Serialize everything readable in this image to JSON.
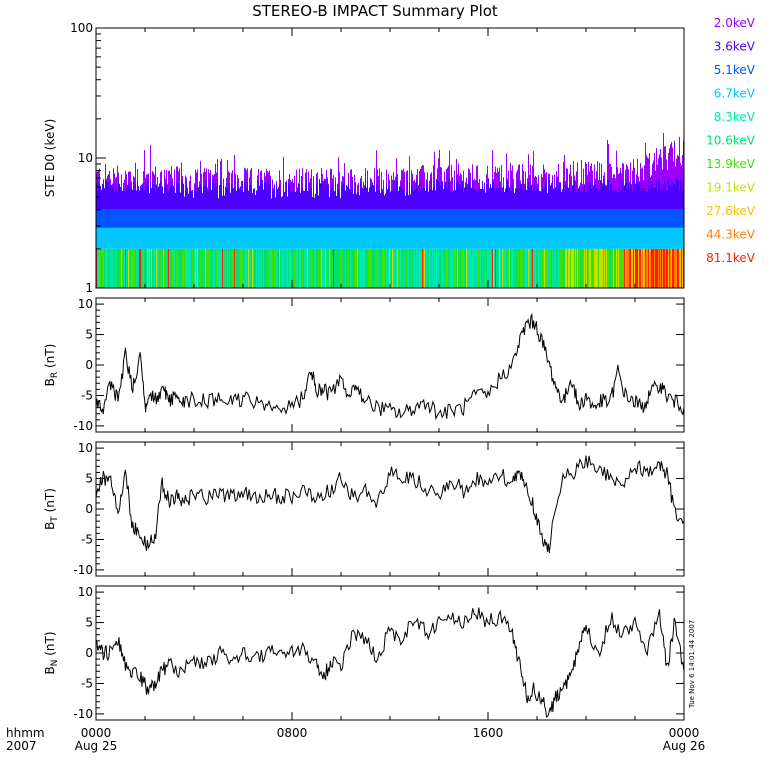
{
  "title": "STEREO-B IMPACT Summary Plot",
  "timestamp": "Tue Nov  6 14:01:44 2007",
  "x_axis": {
    "corner_labels": [
      "hhmm",
      "2007"
    ],
    "ticks": [
      {
        "label": "0000",
        "sub": "Aug 25",
        "hour": 0
      },
      {
        "label": "0800",
        "sub": "",
        "hour": 8
      },
      {
        "label": "1600",
        "sub": "",
        "hour": 16
      },
      {
        "label": "0000",
        "sub": "Aug 26",
        "hour": 24
      }
    ]
  },
  "chart_data": [
    {
      "type": "bar",
      "name": "ste",
      "ylabel": "STE D0 (keV)",
      "yscale": "log",
      "ylim": [
        1,
        100
      ],
      "yticks": [
        1,
        10,
        100
      ],
      "ytick_labels": [
        "1",
        "10",
        "100"
      ],
      "xlim": [
        0,
        24
      ],
      "channels": [
        {
          "label": "2.0keV",
          "color": "#9a00ff"
        },
        {
          "label": "3.6keV",
          "color": "#4b00ff"
        },
        {
          "label": "5.1keV",
          "color": "#0055ff"
        },
        {
          "label": "6.7keV",
          "color": "#00c8ff"
        },
        {
          "label": "8.3keV",
          "color": "#00e8b0"
        },
        {
          "label": "10.6keV",
          "color": "#00e070"
        },
        {
          "label": "13.9keV",
          "color": "#40e000"
        },
        {
          "label": "19.1keV",
          "color": "#c8e000"
        },
        {
          "label": "27.6keV",
          "color": "#ffc000"
        },
        {
          "label": "44.3keV",
          "color": "#ff8000"
        },
        {
          "label": "81.1keV",
          "color": "#ff2000"
        }
      ],
      "approx_top_envelope": {
        "x": [
          0,
          2,
          4,
          6,
          8,
          10,
          12,
          14,
          16,
          18,
          20,
          22,
          23,
          24
        ],
        "y": [
          7,
          7,
          6.5,
          6.5,
          6.5,
          6.5,
          6.5,
          7,
          7,
          7,
          7.5,
          8,
          9,
          12
        ]
      }
    },
    {
      "type": "line",
      "name": "BR",
      "ylabel": "B_R (nT)",
      "ylabel_main": "B",
      "ylabel_sub": "R",
      "ylabel_unit": " (nT)",
      "ylim": [
        -11,
        11
      ],
      "yticks": [
        -10,
        -5,
        0,
        5,
        10
      ],
      "xlim": [
        0,
        24
      ],
      "x": [
        0,
        0.3,
        0.6,
        0.9,
        1.2,
        1.5,
        1.8,
        2.0,
        2.2,
        2.5,
        2.8,
        3.0,
        3.3,
        3.6,
        4.0,
        4.5,
        5.0,
        5.5,
        6.0,
        6.5,
        7.0,
        7.5,
        8.0,
        8.5,
        8.8,
        9.0,
        9.3,
        9.6,
        10.0,
        10.3,
        10.6,
        11.0,
        11.5,
        12.0,
        12.5,
        13.0,
        13.5,
        14.0,
        14.5,
        15.0,
        15.5,
        16.0,
        16.5,
        17.0,
        17.3,
        17.6,
        17.9,
        18.2,
        18.5,
        18.8,
        19.1,
        19.4,
        19.7,
        20.0,
        20.3,
        20.6,
        21.0,
        21.3,
        21.6,
        22.0,
        22.3,
        22.6,
        23.0,
        23.3,
        23.6,
        24.0
      ],
      "y": [
        -6,
        -7,
        -3,
        -6,
        2,
        -4,
        2,
        -7,
        -5,
        -6,
        -4,
        -6,
        -5,
        -6,
        -5.5,
        -6,
        -5.5,
        -6,
        -5.5,
        -6,
        -7,
        -7,
        -7,
        -5,
        -1,
        -4,
        -4,
        -5,
        -2,
        -6,
        -3,
        -6,
        -7,
        -7.5,
        -8,
        -7,
        -6,
        -8,
        -7.5,
        -7,
        -5,
        -5,
        -2,
        0,
        4,
        7,
        7,
        4,
        0,
        -4,
        -6,
        -2,
        -7,
        -5,
        -7,
        -6,
        -6,
        -1,
        -5,
        -6,
        -7,
        -5,
        -3,
        -5,
        -6,
        -7
      ]
    },
    {
      "type": "line",
      "name": "BT",
      "ylabel": "B_T (nT)",
      "ylabel_main": "B",
      "ylabel_sub": "T",
      "ylabel_unit": " (nT)",
      "ylim": [
        -11,
        11
      ],
      "yticks": [
        -10,
        -5,
        0,
        5,
        10
      ],
      "xlim": [
        0,
        24
      ],
      "x": [
        0,
        0.3,
        0.6,
        0.9,
        1.2,
        1.5,
        1.8,
        2.1,
        2.4,
        2.7,
        3.0,
        3.3,
        3.6,
        4.0,
        4.5,
        5.0,
        5.5,
        6.0,
        6.5,
        7.0,
        7.5,
        8.0,
        8.5,
        9.0,
        9.5,
        10.0,
        10.5,
        11.0,
        11.5,
        12.0,
        12.5,
        13.0,
        13.5,
        14.0,
        14.5,
        15.0,
        15.5,
        16.0,
        16.5,
        17.0,
        17.3,
        17.6,
        17.9,
        18.2,
        18.5,
        19.0,
        19.5,
        20.0,
        20.5,
        21.0,
        21.5,
        22.0,
        22.5,
        23.0,
        23.3,
        23.6,
        24.0
      ],
      "y": [
        3,
        5,
        5,
        0,
        6,
        -3,
        -4,
        -6,
        -5,
        4,
        1,
        2,
        1,
        2.5,
        2,
        2.5,
        2,
        2.5,
        2,
        2.5,
        2,
        2,
        3,
        2,
        3,
        5,
        2,
        3,
        1,
        6,
        5,
        5,
        3,
        2,
        5,
        3,
        5,
        4,
        6,
        4,
        6,
        3,
        0,
        -5,
        -6,
        5,
        6,
        8,
        7,
        5,
        4,
        7,
        6,
        7,
        6,
        0,
        -2
      ]
    },
    {
      "type": "line",
      "name": "BN",
      "ylabel": "B_N (nT)",
      "ylabel_main": "B",
      "ylabel_sub": "N",
      "ylabel_unit": " (nT)",
      "ylim": [
        -11,
        11
      ],
      "yticks": [
        -10,
        -5,
        0,
        5,
        10
      ],
      "xlim": [
        0,
        24
      ],
      "x": [
        0,
        0.3,
        0.6,
        0.9,
        1.2,
        1.5,
        1.8,
        2.1,
        2.4,
        2.7,
        3.0,
        3.5,
        4.0,
        4.5,
        5.0,
        5.5,
        6.0,
        6.5,
        7.0,
        7.5,
        8.0,
        8.5,
        9.0,
        9.3,
        9.6,
        10.0,
        10.5,
        11.0,
        11.5,
        12.0,
        12.5,
        13.0,
        13.5,
        14.0,
        14.5,
        15.0,
        15.5,
        16.0,
        16.5,
        17.0,
        17.3,
        17.6,
        17.9,
        18.2,
        18.5,
        18.8,
        19.1,
        19.4,
        19.7,
        20.0,
        20.5,
        21.0,
        21.5,
        22.0,
        22.5,
        23.0,
        23.3,
        23.6,
        24.0
      ],
      "y": [
        1,
        0,
        0,
        2,
        -2,
        -3,
        -4,
        -6,
        -5,
        -3,
        -2,
        -3,
        -1,
        -2,
        0,
        -1,
        0,
        -1,
        0,
        0,
        0,
        1,
        -2,
        -4,
        -1,
        -2,
        3,
        2,
        -1,
        4,
        2,
        6,
        3,
        5,
        6,
        5,
        7,
        5,
        6,
        3,
        -2,
        -7,
        -6,
        -8,
        -10,
        -7,
        -6,
        -3,
        1,
        5,
        -1,
        6,
        3,
        5,
        0,
        7,
        -3,
        5,
        -3
      ]
    }
  ]
}
